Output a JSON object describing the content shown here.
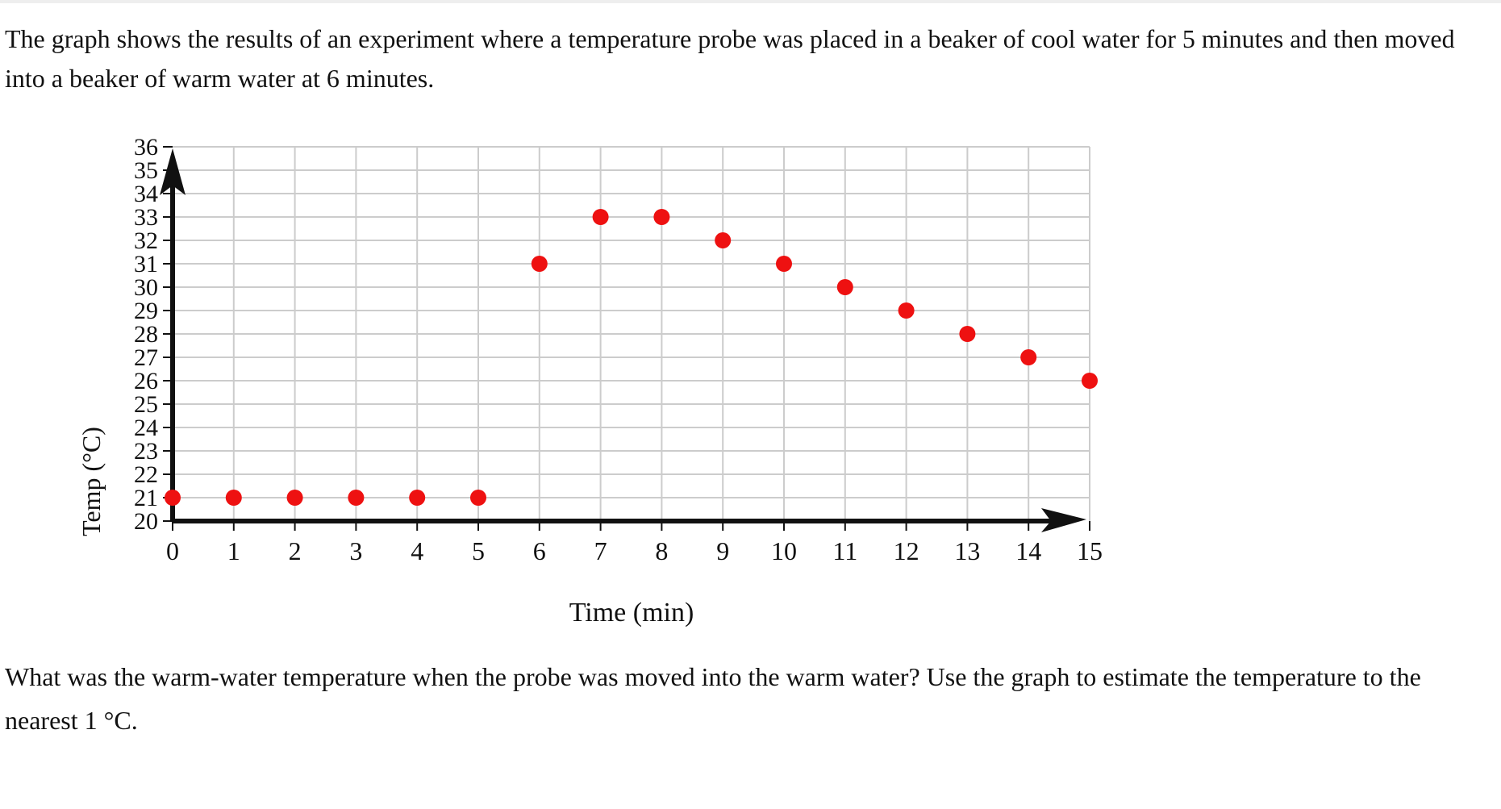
{
  "intro_text": "The graph shows the results of an experiment where a temperature probe was placed in a beaker of cool water for 5 minutes and then moved into a beaker of warm water at 6 minutes.",
  "question_text": "What was the warm-water temperature when the probe was moved into the warm water? Use the graph to estimate the temperature to the nearest 1 °C.",
  "chart_data": {
    "type": "scatter",
    "title": "",
    "xlabel": "Time (min)",
    "ylabel": "Temp (°C)",
    "xlim": [
      0,
      15
    ],
    "ylim": [
      20,
      36
    ],
    "x_ticks": [
      0,
      1,
      2,
      3,
      4,
      5,
      6,
      7,
      8,
      9,
      10,
      11,
      12,
      13,
      14,
      15
    ],
    "y_ticks": [
      20,
      21,
      22,
      23,
      24,
      25,
      26,
      27,
      28,
      29,
      30,
      31,
      32,
      33,
      34,
      35,
      36
    ],
    "grid": true,
    "legend": "none",
    "point_color": "#ee1111",
    "series": [
      {
        "x": [
          0,
          1,
          2,
          3,
          4,
          5,
          6,
          7,
          8,
          9,
          10,
          11,
          12,
          13,
          14,
          15
        ],
        "y": [
          21,
          21,
          21,
          21,
          21,
          21,
          31,
          33,
          33,
          32,
          31,
          30,
          29,
          28,
          27,
          26
        ]
      }
    ]
  }
}
